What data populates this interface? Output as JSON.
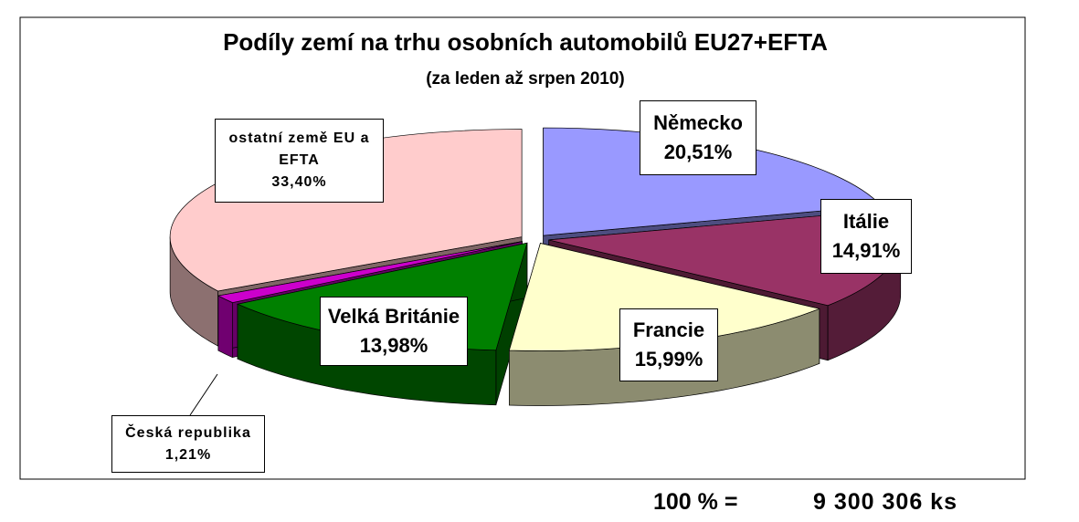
{
  "chart_data": {
    "type": "pie",
    "title": "Podíly zemí na trhu osobních automobilů EU27+EFTA",
    "subtitle": "(za leden až srpen 2010)",
    "categories": [
      "Německo",
      "Itálie",
      "Francie",
      "Velká Británie",
      "Česká republika",
      "ostatní země EU a EFTA"
    ],
    "values": [
      20.51,
      14.91,
      15.99,
      13.98,
      1.21,
      33.4
    ],
    "value_labels": [
      "20,51%",
      "14,91%",
      "15,99%",
      "13,98%",
      "1,21%",
      "33,40%"
    ],
    "colors": [
      "#9999ff",
      "#993366",
      "#ffffcc",
      "#008000",
      "#cc00cc",
      "#ffcccc"
    ],
    "total_label": "100 % =",
    "total_value": "9 300 306 ks"
  }
}
